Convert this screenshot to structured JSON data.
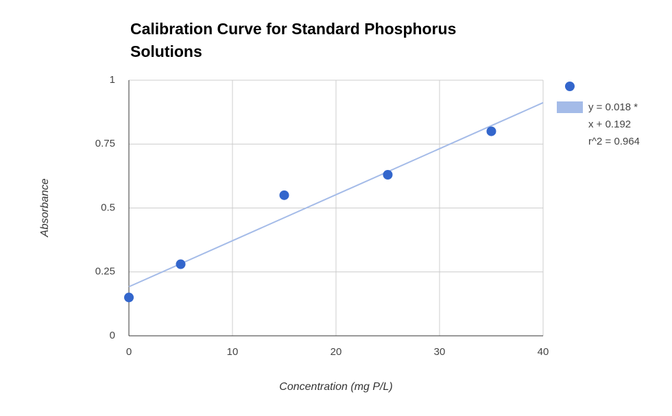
{
  "chart_data": {
    "type": "scatter",
    "title": "Calibration Curve for Standard Phosphorus Solutions",
    "x_label": "Concentration (mg P/L)",
    "y_label": "Absorbance",
    "series": [
      {
        "color": "#3366cc",
        "x": [
          0,
          5,
          15,
          25,
          35
        ],
        "values": [
          0.15,
          0.28,
          0.55,
          0.63,
          0.8
        ]
      }
    ],
    "trendline": {
      "color": "#a4bbe8",
      "slope": 0.018,
      "intercept": 0.192,
      "label": [
        "y = 0.018 *",
        "x + 0.192",
        "r^2 = 0.964"
      ]
    },
    "xlim": [
      0,
      40
    ],
    "xticks": [
      0,
      10,
      20,
      30,
      40
    ],
    "ylim": [
      0,
      1
    ],
    "yticks": [
      0,
      0.25,
      0.5,
      0.75,
      1
    ],
    "grid": true
  }
}
